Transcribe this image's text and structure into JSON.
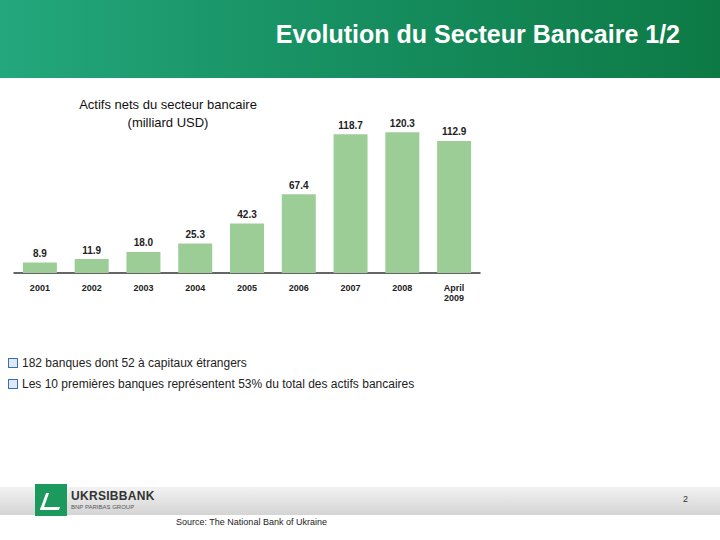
{
  "header": {
    "title": "Evolution du Secteur Bancaire 1/2"
  },
  "chart_data": {
    "type": "bar",
    "title": "Actifs nets du secteur bancaire\n(milliard USD)",
    "categories": [
      "2001",
      "2002",
      "2003",
      "2004",
      "2005",
      "2006",
      "2007",
      "2008",
      "April\n2009"
    ],
    "values": [
      8.9,
      11.9,
      18.0,
      25.3,
      42.3,
      67.4,
      118.7,
      120.3,
      112.9
    ],
    "value_labels": [
      "8.9",
      "11.9",
      "18.0",
      "25.3",
      "42.3",
      "67.4",
      "118.7",
      "120.3",
      "112.9"
    ],
    "color": "#9dcd96",
    "ylim": [
      0,
      130
    ],
    "grid": false,
    "data_labels": true,
    "tick_labels": "x"
  },
  "bullets": [
    "182 banques dont 52 à capitaux étrangers",
    "Les 10 premières banques représentent 53% du total des actifs bancaires"
  ],
  "footer": {
    "logo": "UKRSIBBANK",
    "logo_sub": "BNP PARIBAS GROUP",
    "page": "2",
    "source": "Source: The National Bank of Ukraine"
  }
}
